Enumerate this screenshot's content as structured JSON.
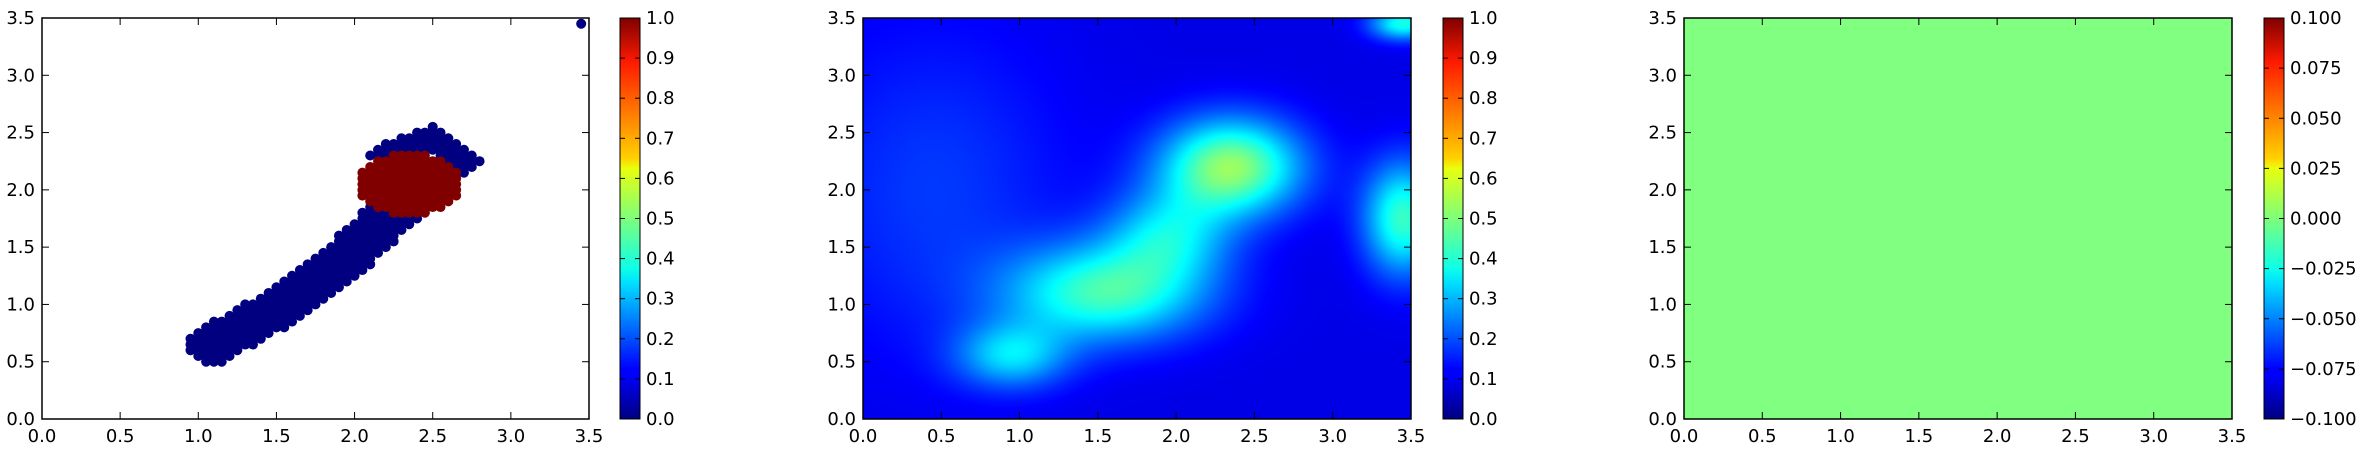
{
  "chart_data": [
    {
      "type": "scatter",
      "title": "",
      "xlabel": "",
      "ylabel": "",
      "xlim": [
        0.0,
        3.5
      ],
      "ylim": [
        0.0,
        3.5
      ],
      "x_ticks": [
        "0.0",
        "0.5",
        "1.0",
        "1.5",
        "2.0",
        "2.5",
        "3.0",
        "3.5"
      ],
      "y_ticks": [
        "0.0",
        "0.5",
        "1.0",
        "1.5",
        "2.0",
        "2.5",
        "3.0",
        "3.5"
      ],
      "colormap": "jet",
      "clim": [
        0.0,
        1.0
      ],
      "colorbar_ticks": [
        "0.0",
        "0.1",
        "0.2",
        "0.3",
        "0.4",
        "0.5",
        "0.6",
        "0.7",
        "0.8",
        "0.9",
        "1.0"
      ],
      "clusters": [
        {
          "class_value": 0.0,
          "path": [
            [
              1.1,
              0.65
            ],
            [
              1.5,
              0.95
            ],
            [
              1.9,
              1.35
            ],
            [
              2.25,
              1.8
            ]
          ],
          "width": 0.16
        },
        {
          "class_value": 0.0,
          "path": [
            [
              2.2,
              2.3
            ],
            [
              2.5,
              2.45
            ],
            [
              2.7,
              2.25
            ]
          ],
          "width": 0.1
        },
        {
          "class_value": 1.0,
          "center": [
            2.35,
            2.05
          ],
          "rx": 0.33,
          "ry": 0.28
        }
      ],
      "isolated_points": [
        {
          "x": 3.45,
          "y": 3.45,
          "value": 0.0
        }
      ]
    },
    {
      "type": "heatmap",
      "title": "",
      "xlabel": "",
      "ylabel": "",
      "xlim": [
        0.0,
        3.5
      ],
      "ylim": [
        0.0,
        3.5
      ],
      "x_ticks": [
        "0.0",
        "0.5",
        "1.0",
        "1.5",
        "2.0",
        "2.5",
        "3.0",
        "3.5"
      ],
      "y_ticks": [
        "0.0",
        "0.5",
        "1.0",
        "1.5",
        "2.0",
        "2.5",
        "3.0",
        "3.5"
      ],
      "colormap": "jet",
      "clim": [
        0.0,
        1.0
      ],
      "colorbar_ticks": [
        "0.0",
        "0.1",
        "0.2",
        "0.3",
        "0.4",
        "0.5",
        "0.6",
        "0.7",
        "0.8",
        "0.9",
        "1.0"
      ],
      "base_value": 0.1,
      "blobs": [
        {
          "x": 2.35,
          "y": 2.2,
          "sx": 0.32,
          "sy": 0.3,
          "amp": 0.42
        },
        {
          "x": 1.55,
          "y": 1.1,
          "sx": 0.45,
          "sy": 0.3,
          "amp": 0.33
        },
        {
          "x": 0.95,
          "y": 0.55,
          "sx": 0.25,
          "sy": 0.2,
          "amp": 0.22
        },
        {
          "x": 1.95,
          "y": 1.6,
          "sx": 0.28,
          "sy": 0.28,
          "amp": 0.22
        },
        {
          "x": 3.45,
          "y": 1.75,
          "sx": 0.18,
          "sy": 0.35,
          "amp": 0.33
        },
        {
          "x": 3.45,
          "y": 3.45,
          "sx": 0.15,
          "sy": 0.1,
          "amp": 0.3
        },
        {
          "x": 0.45,
          "y": 2.0,
          "sx": 0.6,
          "sy": 1.0,
          "amp": 0.08
        }
      ]
    },
    {
      "type": "heatmap",
      "title": "",
      "xlabel": "",
      "ylabel": "",
      "xlim": [
        0.0,
        3.5
      ],
      "ylim": [
        0.0,
        3.5
      ],
      "x_ticks": [
        "0.0",
        "0.5",
        "1.0",
        "1.5",
        "2.0",
        "2.5",
        "3.0",
        "3.5"
      ],
      "y_ticks": [
        "0.0",
        "0.5",
        "1.0",
        "1.5",
        "2.0",
        "2.5",
        "3.0",
        "3.5"
      ],
      "colormap": "jet",
      "clim": [
        -0.1,
        0.1
      ],
      "colorbar_ticks": [
        "−0.100",
        "−0.075",
        "−0.050",
        "−0.025",
        "0.000",
        "0.025",
        "0.050",
        "0.075",
        "0.100"
      ],
      "uniform_value": 0.0
    }
  ]
}
